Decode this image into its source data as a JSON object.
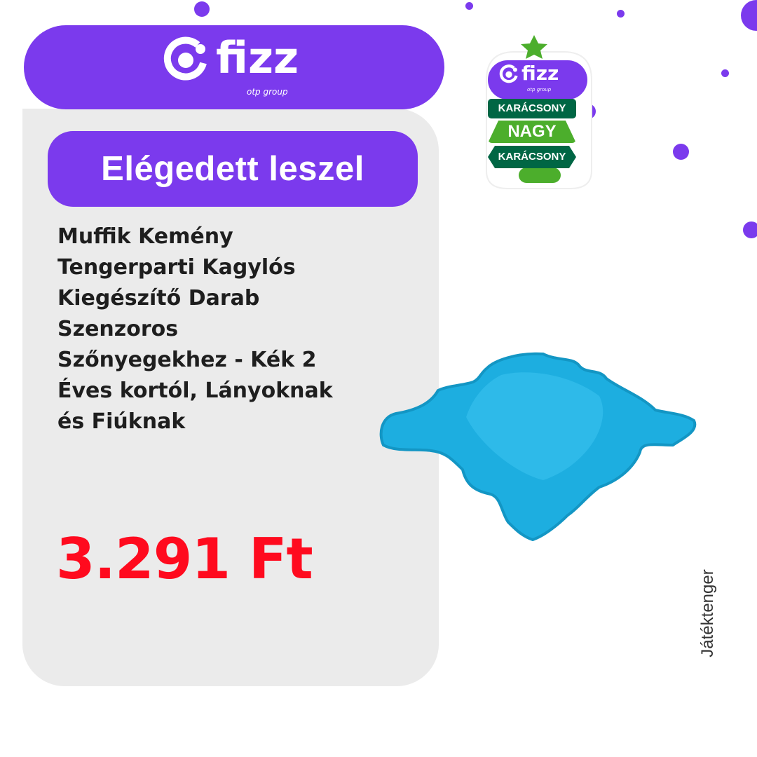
{
  "logo": {
    "word": "fizz",
    "sub": "otp group"
  },
  "headline": "Elégedett leszel",
  "product": {
    "title": "Muffik Kemény Tengerparti Kagylós Kiegészítő Darab Szenzoros Szőnyegekhez - Kék 2 Éves kortól, Lányoknak és Fiúknak",
    "price": "3.291 Ft",
    "image": "blue-sensory-puzzle-mat"
  },
  "badge": {
    "line1": "KARÁCSONY",
    "line2": "NAGY",
    "line3": "KARÁCSONY",
    "logo_word": "fizz",
    "logo_sub": "otp group"
  },
  "brand": "Játéktenger",
  "colors": {
    "purple": "#7b3aed",
    "price_red": "#ff0a1e",
    "dark_green": "#006644",
    "light_green": "#4cae2c",
    "product_blue": "#1daee0"
  }
}
